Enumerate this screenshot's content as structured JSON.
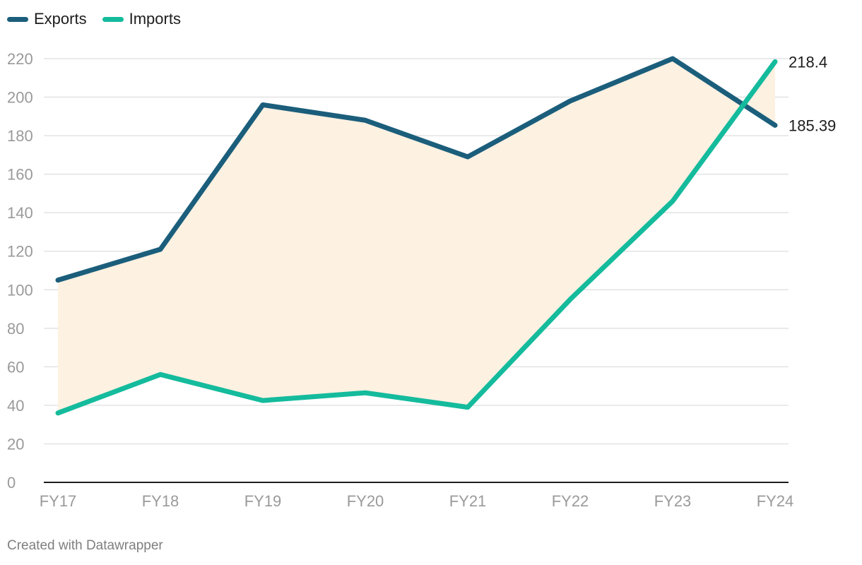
{
  "chart_data": {
    "type": "line",
    "categories": [
      "FY17",
      "FY18",
      "FY19",
      "FY20",
      "FY21",
      "FY22",
      "FY23",
      "FY24"
    ],
    "series": [
      {
        "name": "Exports",
        "color": "#1b5e7b",
        "values": [
          105,
          121,
          196,
          188,
          169,
          198,
          220,
          185.39
        ]
      },
      {
        "name": "Imports",
        "color": "#14bb9c",
        "values": [
          36,
          56,
          42.5,
          46.5,
          39,
          95,
          146,
          218.4
        ]
      }
    ],
    "end_labels": [
      "185.39",
      "218.4"
    ],
    "ylim": [
      0,
      220
    ],
    "yticks": [
      0,
      20,
      40,
      60,
      80,
      100,
      120,
      140,
      160,
      180,
      200,
      220
    ],
    "range_fill_color": "#fdf1e2",
    "grid": true,
    "legend_position": "top-left",
    "title": "",
    "xlabel": "",
    "ylabel": ""
  },
  "footer": {
    "credit": "Created with Datawrapper"
  }
}
